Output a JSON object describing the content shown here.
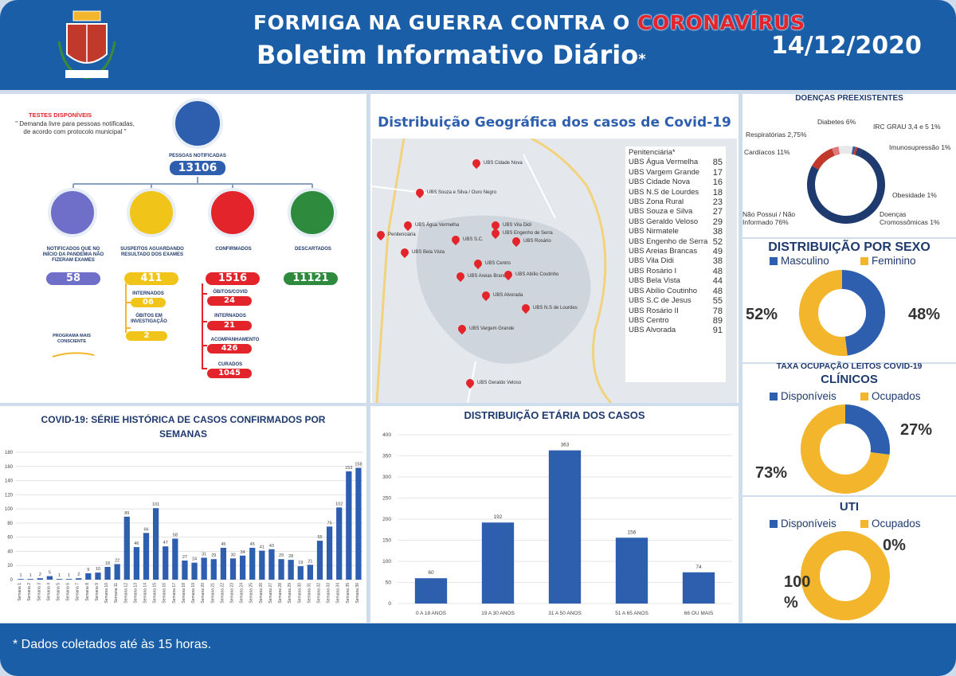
{
  "header": {
    "title_line1": "FORMIGA NA GUERRA CONTRA O",
    "title_virus": "CORONAVÍRUS",
    "title_line2": "Boletim Informativo Diário",
    "asterisk": "*",
    "date": "14/12/2020"
  },
  "footer": {
    "note": "* Dados coletados até às 15 horas."
  },
  "tests": {
    "title": "TESTES DISPONÍVEIS",
    "note": "\" Demanda livre para pessoas notificadas, de acordo com protocolo municipal \"",
    "total_label": "PESSOAS NOTIFICADAS",
    "total": "13106",
    "notified_label": "NOTIFICADOS QUE NO INÍCIO DA PANDEMIA NÃO FIZERAM EXAMES",
    "notified": "58",
    "suspect_label": "SUSPEITOS AGUARDANDO RESULTADO DOS EXAMES",
    "suspect": "411",
    "internados_label": "INTERNADOS",
    "internados": "06",
    "obitos_inv_label": "ÓBITOS EM INVESTIGAÇÃO",
    "obitos_inv": "2",
    "confirmed_label": "CONFIRMADOS",
    "confirmed": "1516",
    "obitos_label": "ÓBITOS/COVID",
    "obitos": "24",
    "conf_internados_label": "INTERNADOS",
    "conf_internados": "21",
    "acompanhamento_label": "ACOMPANHAMENTO",
    "acompanhamento": "426",
    "curados_label": "CURADOS",
    "curados": "1045",
    "discarded_label": "DESCARTADOS",
    "discarded": "11121",
    "program": "PROGRAMA MAIS CONSCIENTE"
  },
  "map": {
    "title": "Distribuição Geográfica dos casos de Covid-19",
    "pins": [
      "UBS Cidade Nova",
      "UBS Souza e Silva / Ouro Negro",
      "UBS Água Vermelha",
      "UBS Vila Didi",
      "Penitenciária",
      "UBS Engenho de Serra",
      "UBS S.C.",
      "UBS Rosário",
      "UBS Bela Vista",
      "UBS Centro",
      "UBS Areias Brancas",
      "UBS Abílio Coutinho",
      "UBS Alvorada",
      "UBS N.S de Lourdes",
      "UBS Vargem Grande",
      "UBS Geraldo Veloso"
    ],
    "table": [
      {
        "name": "Penitenciária*",
        "value": ""
      },
      {
        "name": "UBS Água Vermelha",
        "value": "85"
      },
      {
        "name": "UBS Vargem Grande",
        "value": "17"
      },
      {
        "name": "UBS Cidade Nova",
        "value": "16"
      },
      {
        "name": "UBS N.S de Lourdes",
        "value": "18"
      },
      {
        "name": "UBS Zona Rural",
        "value": "23"
      },
      {
        "name": "UBS Souza e Silva",
        "value": "27"
      },
      {
        "name": "UBS Geraldo Veloso",
        "value": "29"
      },
      {
        "name": "UBS Nirmatele",
        "value": "38"
      },
      {
        "name": "UBS Engenho de Serra",
        "value": "52"
      },
      {
        "name": "UBS Areias Brancas",
        "value": "49"
      },
      {
        "name": "UBS Vila Didi",
        "value": "38"
      },
      {
        "name": "UBS Rosário I",
        "value": "48"
      },
      {
        "name": "UBS Bela Vista",
        "value": "44"
      },
      {
        "name": "UBS Abílio Coutinho",
        "value": "48"
      },
      {
        "name": "UBS S.C de Jesus",
        "value": "55"
      },
      {
        "name": "UBS Rosário II",
        "value": "78"
      },
      {
        "name": "UBS Centro",
        "value": "89"
      },
      {
        "name": "UBS Alvorada",
        "value": "91"
      }
    ]
  },
  "side": {
    "diseases_title": "DOENÇAS PREEXISTENTES",
    "sex_title": "DISTRIBUIÇÃO POR SEXO",
    "beds_title": "TAXA OCUPAÇÃO LEITOS COVID-19",
    "clinicos": "CLÍNICOS",
    "uti": "UTI"
  },
  "colors": {
    "blue": "#2e5fae",
    "yellow": "#f3b52b",
    "dark": "#1f3a6e",
    "red": "#e3242b"
  },
  "chart_data": [
    {
      "type": "pie",
      "title": "DOENÇAS PREEXISTENTES",
      "labels": [
        "Diabetes 6%",
        "IRC GRAU 3,4 e 5 1%",
        "Imunosupressão 1%",
        "Obesidade 1%",
        "Doenças Cromossômicas 1%",
        "Não Possui / Não Informado 76%",
        "Cardíacos 11%",
        "Respiratórias 2,75%"
      ],
      "values": [
        6,
        1,
        1,
        1,
        1,
        76,
        11,
        2.75
      ]
    },
    {
      "type": "pie",
      "title": "DISTRIBUIÇÃO POR SEXO",
      "labels": [
        "Masculino",
        "Feminino"
      ],
      "values": [
        48,
        52
      ],
      "value_labels": [
        "48%",
        "52%"
      ]
    },
    {
      "type": "pie",
      "title": "TAXA OCUPAÇÃO LEITOS COVID-19 CLÍNICOS",
      "labels": [
        "Disponíveis",
        "Ocupados"
      ],
      "values": [
        27,
        73
      ],
      "value_labels": [
        "27%",
        "73%"
      ]
    },
    {
      "type": "pie",
      "title": "UTI",
      "labels": [
        "Disponíveis",
        "Ocupados"
      ],
      "values": [
        0,
        100
      ],
      "value_labels": [
        "0%",
        "100 %"
      ]
    },
    {
      "type": "bar",
      "title": "COVID-19: SÉRIE HISTÓRICA DE CASOS CONFIRMADOS POR SEMANAS",
      "ylim": [
        0,
        180
      ],
      "yticks": [
        "0",
        "20",
        "40",
        "60",
        "80",
        "100",
        "120",
        "140",
        "160",
        "180"
      ],
      "category_prefix": "Semana",
      "values": [
        1,
        1,
        2,
        5,
        1,
        1,
        2,
        9,
        10,
        18,
        22,
        89,
        46,
        66,
        101,
        47,
        58,
        27,
        24,
        31,
        29,
        45,
        30,
        34,
        45,
        41,
        43,
        29,
        28,
        19,
        21,
        55,
        75,
        102,
        153,
        158
      ]
    },
    {
      "type": "bar",
      "title": "DISTRIBUIÇÃO ETÁRIA DOS CASOS",
      "categories": [
        "0 A 18 ANOS",
        "19 A 30 ANOS",
        "31 A 50 ANOS",
        "51 A 65 ANOS",
        "66 OU MAIS"
      ],
      "values": [
        60,
        192,
        363,
        156,
        74
      ],
      "ylim": [
        0,
        400
      ],
      "yticks": [
        "0",
        "50",
        "100",
        "150",
        "200",
        "250",
        "300",
        "350",
        "400"
      ]
    }
  ]
}
